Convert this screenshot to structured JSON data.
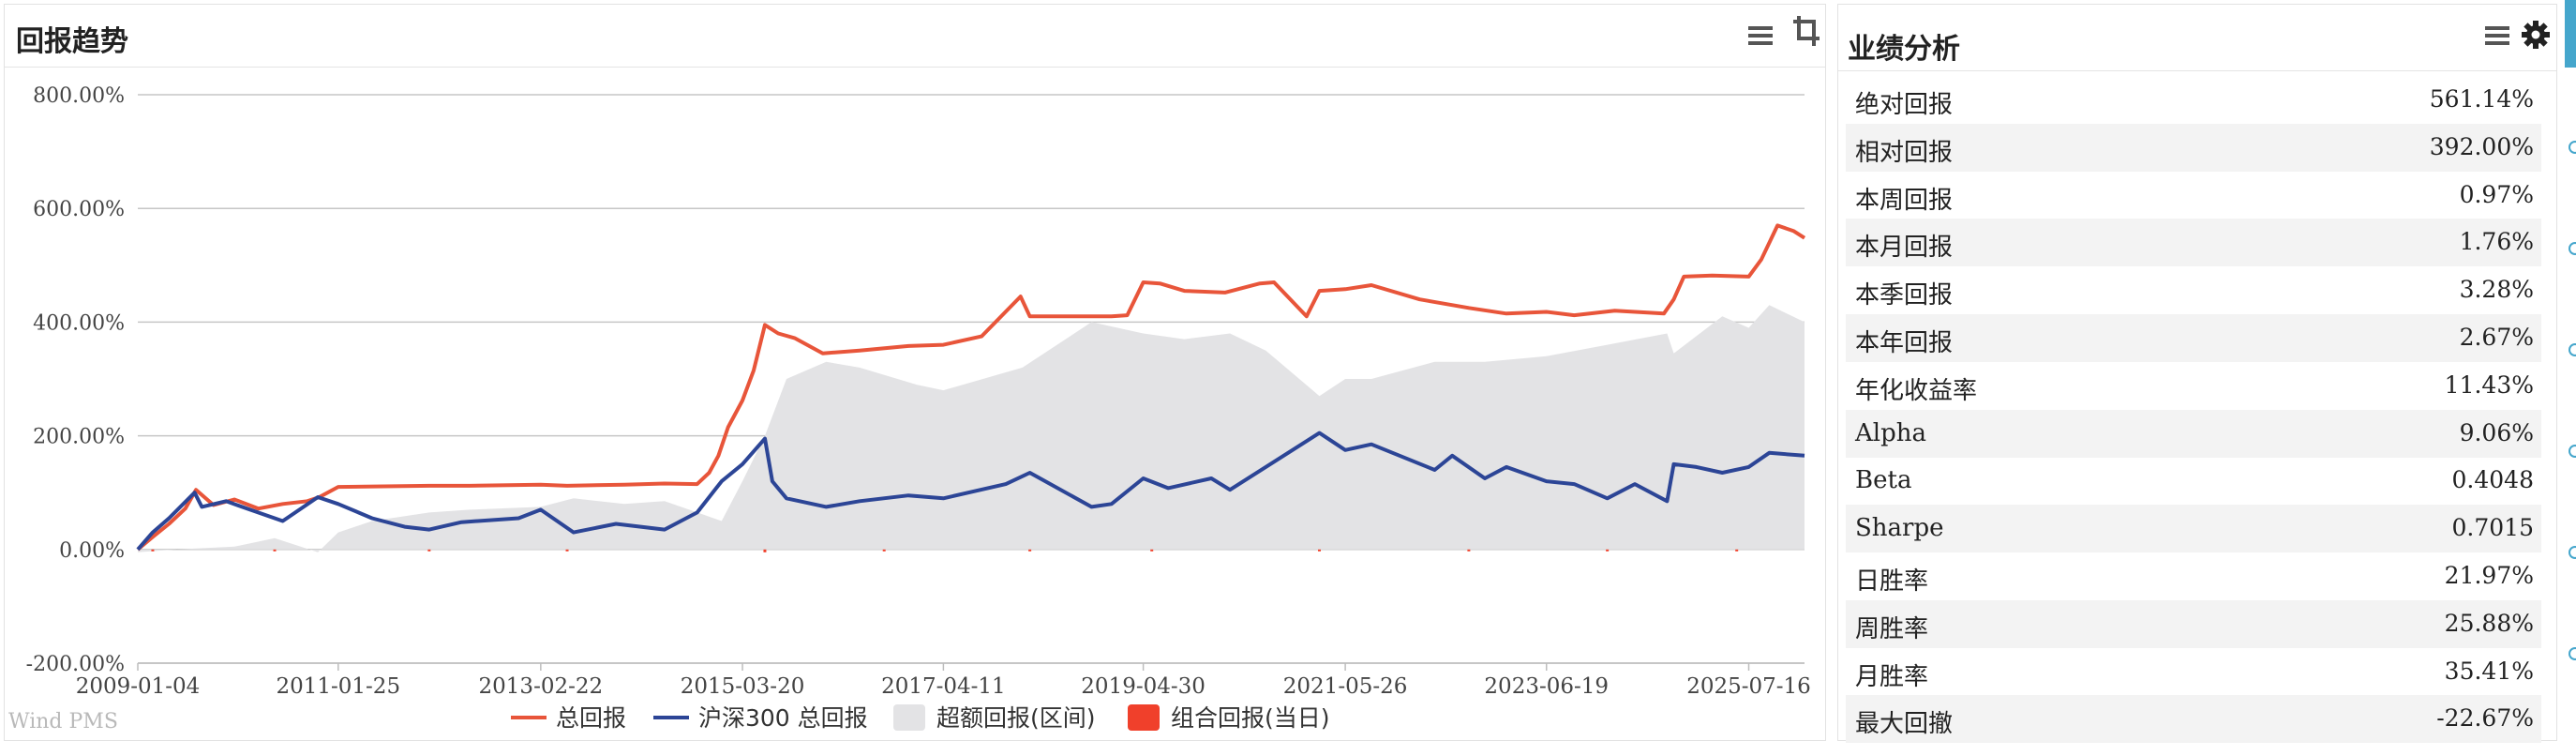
{
  "chart_panel": {
    "title": "回报趋势",
    "menu_icon": "menu-icon",
    "crop_icon": "crop-icon",
    "watermark": "Wind PMS"
  },
  "chart_data": {
    "type": "line",
    "title": "回报趋势",
    "xlabel": "",
    "ylabel": "",
    "y_ticks": [
      "800.00%",
      "600.00%",
      "400.00%",
      "200.00%",
      "0.00%",
      "-200.00%"
    ],
    "y_tick_values": [
      800,
      600,
      400,
      200,
      0,
      -200
    ],
    "ylim": [
      -200,
      800
    ],
    "x_ticks": [
      "2009-01-04",
      "2011-01-25",
      "2013-02-22",
      "2015-03-20",
      "2017-04-11",
      "2019-04-30",
      "2021-05-26",
      "2023-06-19",
      "2025-07-16"
    ],
    "xlim": [
      "2009-01-04",
      "2026-02-10"
    ],
    "grid": true,
    "legend_position": "bottom",
    "legend": [
      {
        "name": "总回报",
        "marker": "line",
        "color": "#e8553a"
      },
      {
        "name": "沪深300 总回报",
        "marker": "line",
        "color": "#2c4596"
      },
      {
        "name": "超额回报(区间)",
        "marker": "box",
        "color": "#e3e3e5"
      },
      {
        "name": "组合回报(当日)",
        "marker": "box",
        "color": "#f0402b"
      }
    ],
    "series": [
      {
        "name": "总回报",
        "type": "line",
        "color": "#e8553a",
        "x": [
          "2009-01-04",
          "2009-03-01",
          "2009-05-01",
          "2009-07-01",
          "2009-08-10",
          "2009-10-15",
          "2010-01-01",
          "2010-04-01",
          "2010-07-01",
          "2010-10-01",
          "2010-11-15",
          "2011-01-25",
          "2012-01-01",
          "2012-06-01",
          "2013-02-22",
          "2013-06-01",
          "2014-01-01",
          "2014-06-01",
          "2014-10-01",
          "2014-11-15",
          "2014-12-20",
          "2015-01-25",
          "2015-03-20",
          "2015-05-01",
          "2015-06-12",
          "2015-08-01",
          "2015-10-01",
          "2016-01-15",
          "2016-06-01",
          "2016-12-01",
          "2017-04-11",
          "2017-09-01",
          "2018-01-25",
          "2018-03-01",
          "2018-06-01",
          "2019-01-01",
          "2019-03-01",
          "2019-04-30",
          "2019-07-01",
          "2019-10-01",
          "2020-03-01",
          "2020-07-10",
          "2020-09-01",
          "2021-01-01",
          "2021-02-18",
          "2021-05-26",
          "2021-09-01",
          "2022-03-01",
          "2022-09-01",
          "2023-01-20",
          "2023-06-19",
          "2023-10-01",
          "2024-03-01",
          "2024-09-01",
          "2024-10-08",
          "2024-11-15",
          "2025-03-01",
          "2025-07-16",
          "2025-09-01",
          "2025-11-01",
          "2026-01-01",
          "2026-02-10"
        ],
        "values": [
          0,
          22,
          45,
          72,
          105,
          78,
          88,
          72,
          80,
          85,
          92,
          110,
          112,
          112,
          114,
          112,
          114,
          116,
          115,
          135,
          165,
          215,
          262,
          315,
          395,
          380,
          372,
          345,
          350,
          358,
          360,
          375,
          445,
          410,
          410,
          410,
          412,
          470,
          468,
          455,
          452,
          468,
          470,
          410,
          455,
          458,
          465,
          440,
          425,
          415,
          418,
          412,
          420,
          415,
          440,
          480,
          482,
          480,
          510,
          570,
          560,
          548
        ]
      },
      {
        "name": "沪深300 总回报",
        "type": "line",
        "color": "#2c4596",
        "x": [
          "2009-01-04",
          "2009-03-01",
          "2009-05-01",
          "2009-08-05",
          "2009-09-01",
          "2009-12-01",
          "2010-03-01",
          "2010-07-01",
          "2010-11-10",
          "2011-01-25",
          "2011-06-01",
          "2011-10-01",
          "2012-01-01",
          "2012-05-01",
          "2012-12-01",
          "2013-02-22",
          "2013-06-25",
          "2013-12-01",
          "2014-06-01",
          "2014-10-01",
          "2015-01-01",
          "2015-03-20",
          "2015-06-12",
          "2015-07-10",
          "2015-09-01",
          "2016-01-28",
          "2016-06-01",
          "2016-12-01",
          "2017-04-11",
          "2017-12-01",
          "2018-03-01",
          "2018-10-18",
          "2019-01-01",
          "2019-04-30",
          "2019-08-01",
          "2020-01-10",
          "2020-03-20",
          "2020-08-01",
          "2021-02-18",
          "2021-05-26",
          "2021-09-01",
          "2022-04-26",
          "2022-07-01",
          "2022-10-31",
          "2023-01-20",
          "2023-06-19",
          "2023-10-01",
          "2024-02-02",
          "2024-05-15",
          "2024-09-13",
          "2024-10-08",
          "2025-01-01",
          "2025-04-08",
          "2025-07-16",
          "2025-10-01",
          "2026-02-10"
        ],
        "values": [
          0,
          30,
          55,
          100,
          75,
          85,
          70,
          50,
          92,
          80,
          55,
          40,
          35,
          48,
          55,
          70,
          30,
          45,
          35,
          65,
          120,
          150,
          195,
          120,
          90,
          75,
          85,
          95,
          90,
          115,
          135,
          75,
          80,
          125,
          108,
          125,
          105,
          145,
          205,
          175,
          185,
          140,
          165,
          125,
          145,
          120,
          115,
          90,
          115,
          85,
          150,
          145,
          135,
          145,
          170,
          165
        ]
      },
      {
        "name": "超额回报(区间)",
        "type": "area",
        "color": "#e3e3e5",
        "x": [
          "2009-01-04",
          "2009-06-01",
          "2010-01-01",
          "2010-06-01",
          "2010-11-10",
          "2011-01-25",
          "2011-06-01",
          "2012-01-01",
          "2012-06-01",
          "2013-02-22",
          "2013-06-25",
          "2014-01-01",
          "2014-06-01",
          "2014-11-01",
          "2015-01-01",
          "2015-03-20",
          "2015-06-12",
          "2015-09-01",
          "2016-01-28",
          "2016-06-01",
          "2017-01-01",
          "2017-04-11",
          "2018-02-01",
          "2018-10-18",
          "2019-04-30",
          "2019-10-01",
          "2020-03-20",
          "2020-08-01",
          "2021-02-18",
          "2021-05-26",
          "2021-09-01",
          "2022-04-26",
          "2022-10-31",
          "2023-06-19",
          "2024-02-02",
          "2024-09-13",
          "2024-10-08",
          "2025-04-08",
          "2025-07-16",
          "2025-10-01",
          "2026-02-10"
        ],
        "values": [
          -5,
          0,
          5,
          20,
          -5,
          30,
          50,
          65,
          70,
          75,
          90,
          80,
          85,
          60,
          50,
          120,
          200,
          300,
          330,
          320,
          290,
          280,
          320,
          400,
          380,
          370,
          380,
          350,
          270,
          300,
          300,
          330,
          330,
          340,
          360,
          380,
          345,
          410,
          390,
          430,
          400
        ]
      },
      {
        "name": "组合回报(当日)",
        "type": "bar",
        "color": "#f0402b",
        "x": [
          "2009-03-01",
          "2010-06-01",
          "2012-01-01",
          "2013-06-01",
          "2015-06-12",
          "2016-09-01",
          "2018-03-01",
          "2019-06-01",
          "2021-02-18",
          "2022-09-01",
          "2024-02-02",
          "2025-06-01"
        ],
        "values": [
          -3,
          -2,
          -2,
          -3,
          -5,
          -2,
          -3,
          -2,
          -3,
          -2,
          -3,
          -2
        ]
      }
    ]
  },
  "perf_panel": {
    "title": "业绩分析",
    "menu_icon": "menu-icon",
    "settings_icon": "gear-icon",
    "rows": [
      {
        "label": "绝对回报",
        "value": "561.14%"
      },
      {
        "label": "相对回报",
        "value": "392.00%"
      },
      {
        "label": "本周回报",
        "value": "0.97%"
      },
      {
        "label": "本月回报",
        "value": "1.76%"
      },
      {
        "label": "本季回报",
        "value": "3.28%"
      },
      {
        "label": "本年回报",
        "value": "2.67%"
      },
      {
        "label": "年化收益率",
        "value": "11.43%"
      },
      {
        "label": "Alpha",
        "value": "9.06%"
      },
      {
        "label": "Beta",
        "value": "0.4048"
      },
      {
        "label": "Sharpe",
        "value": "0.7015"
      },
      {
        "label": "日胜率",
        "value": "21.97%"
      },
      {
        "label": "周胜率",
        "value": "25.88%"
      },
      {
        "label": "月胜率",
        "value": "35.41%"
      },
      {
        "label": "最大回撤",
        "value": "-22.67%"
      }
    ]
  }
}
